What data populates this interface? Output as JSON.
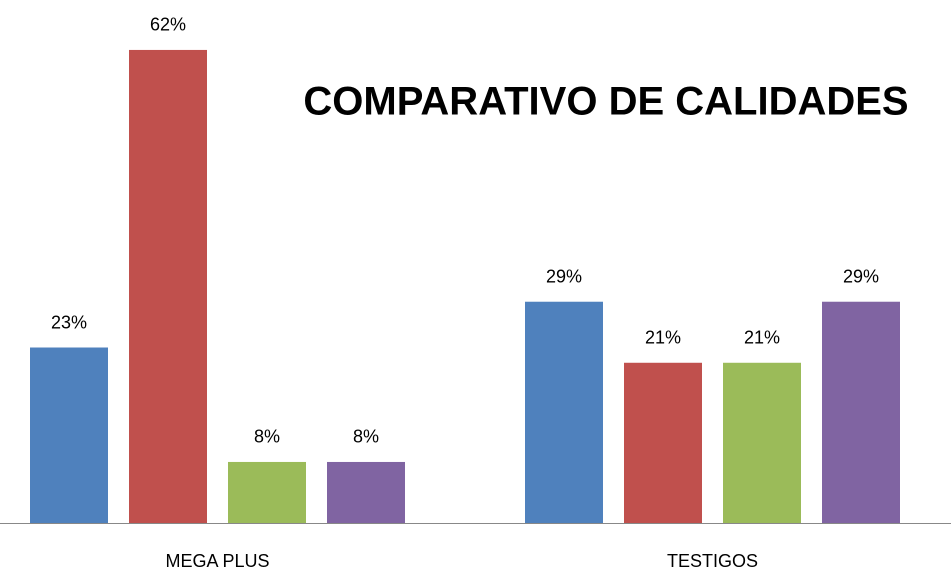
{
  "chart_data": {
    "type": "bar",
    "title": "COMPARATIVO DE CALIDADES",
    "categories": [
      "MEGA PLUS",
      "TESTIGOS"
    ],
    "series": [
      {
        "color": "#4f81bd",
        "values": [
          23,
          29
        ],
        "value_labels": [
          "23%",
          "29%"
        ]
      },
      {
        "color": "#c0504d",
        "values": [
          62,
          21
        ],
        "value_labels": [
          "62%",
          "21%"
        ]
      },
      {
        "color": "#9bbb59",
        "values": [
          8,
          21
        ],
        "value_labels": [
          "8%",
          "21%"
        ]
      },
      {
        "color": "#8064a2",
        "values": [
          8,
          29
        ],
        "value_labels": [
          "8%",
          "29%"
        ]
      }
    ]
  }
}
